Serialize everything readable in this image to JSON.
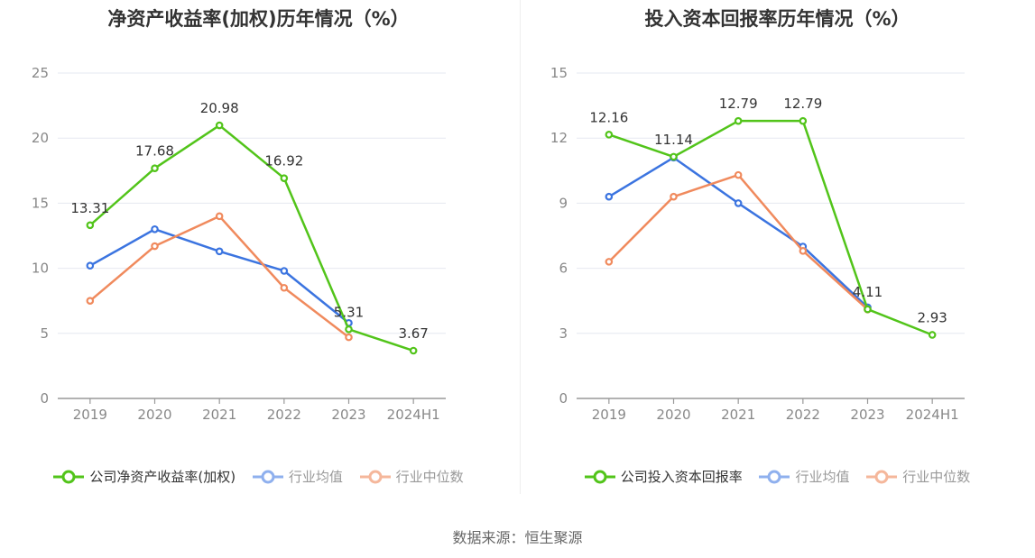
{
  "chart_data": [
    {
      "type": "line",
      "title": "净资产收益率(加权)历年情况（%）",
      "categories": [
        "2019",
        "2020",
        "2021",
        "2022",
        "2023",
        "2024H1"
      ],
      "ylim": [
        0,
        25
      ],
      "yticks": [
        0,
        5,
        10,
        15,
        20,
        25
      ],
      "grid": true,
      "legend_position": "bottom",
      "series": [
        {
          "name": "公司净资产收益率(加权)",
          "color": "#52c41a",
          "labels": true,
          "values": [
            13.31,
            17.68,
            20.98,
            16.92,
            5.31,
            3.67
          ]
        },
        {
          "name": "行业均值",
          "color": "#3b74e0",
          "labels": false,
          "values": [
            10.2,
            13.0,
            11.3,
            9.8,
            5.8,
            null
          ]
        },
        {
          "name": "行业中位数",
          "color": "#f08a5d",
          "labels": false,
          "values": [
            7.5,
            11.7,
            14.0,
            8.5,
            4.7,
            null
          ]
        }
      ]
    },
    {
      "type": "line",
      "title": "投入资本回报率历年情况（%）",
      "categories": [
        "2019",
        "2020",
        "2021",
        "2022",
        "2023",
        "2024H1"
      ],
      "ylim": [
        0,
        15
      ],
      "yticks": [
        0,
        3,
        6,
        9,
        12,
        15
      ],
      "grid": true,
      "legend_position": "bottom",
      "series": [
        {
          "name": "公司投入资本回报率",
          "color": "#52c41a",
          "labels": true,
          "values": [
            12.16,
            11.14,
            12.79,
            12.79,
            4.11,
            2.93
          ]
        },
        {
          "name": "行业均值",
          "color": "#3b74e0",
          "labels": false,
          "values": [
            9.3,
            11.1,
            9.0,
            7.0,
            4.2,
            null
          ]
        },
        {
          "name": "行业中位数",
          "color": "#f08a5d",
          "labels": false,
          "values": [
            6.3,
            9.3,
            10.3,
            6.8,
            4.1,
            null
          ]
        }
      ]
    }
  ],
  "source": "数据来源：恒生聚源"
}
